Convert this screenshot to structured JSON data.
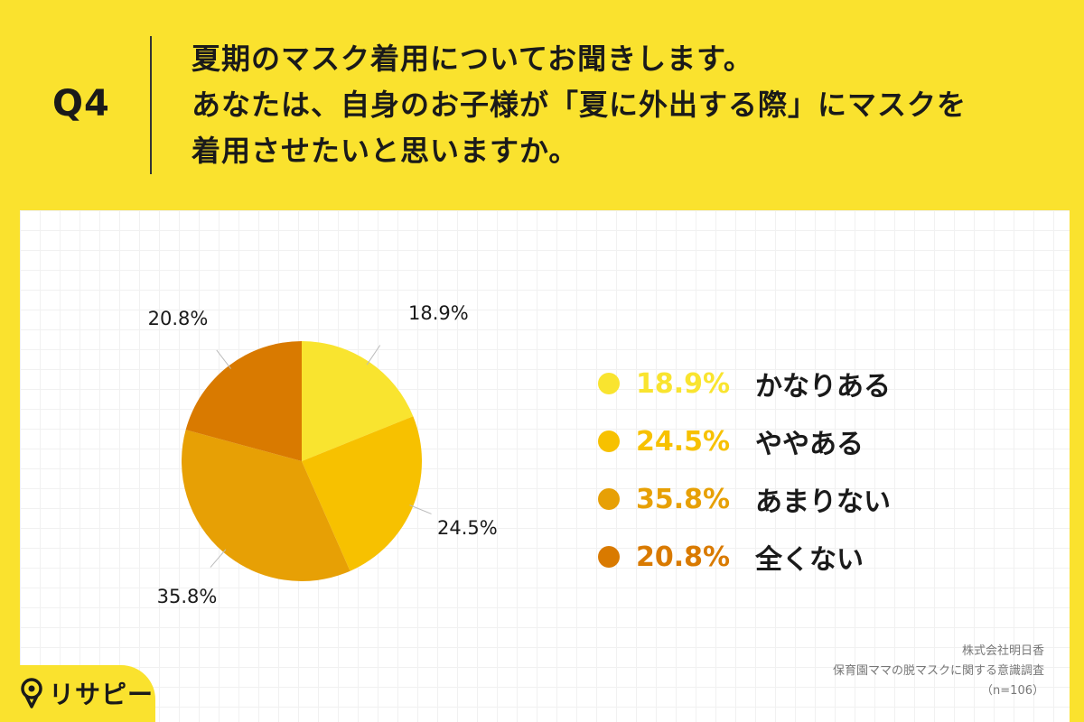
{
  "question": {
    "number": "Q4",
    "lines": [
      "夏期のマスク着用についてお聞きします。",
      "あなたは、自身のお子様が「夏に外出する際」にマスクを",
      "着用させたいと思いますか。"
    ]
  },
  "chart_data": {
    "type": "pie",
    "categories": [
      "かなりある",
      "ややある",
      "あまりない",
      "全くない"
    ],
    "values": [
      18.9,
      24.5,
      35.8,
      20.8
    ],
    "data_labels": [
      "18.9%",
      "24.5%",
      "35.8%",
      "20.8%"
    ],
    "colors": [
      "#f9e42f",
      "#f7c100",
      "#e7a005",
      "#d97a00"
    ],
    "start_angle": "12 o'clock",
    "direction": "clockwise",
    "legend_position": "right"
  },
  "legend": [
    {
      "pct": "18.9%",
      "label": "かなりある",
      "color": "#f9e42f"
    },
    {
      "pct": "24.5%",
      "label": "ややある",
      "color": "#f7c100"
    },
    {
      "pct": "35.8%",
      "label": "あまりない",
      "color": "#e7a005"
    },
    {
      "pct": "20.8%",
      "label": "全くない",
      "color": "#d97a00"
    }
  ],
  "source": {
    "company": "株式会社明日香",
    "survey": "保育園ママの脱マスクに関する意識調査",
    "sample": "（n=106）"
  },
  "logo": {
    "text": "リサピー",
    "icon": "map-pin-icon"
  }
}
